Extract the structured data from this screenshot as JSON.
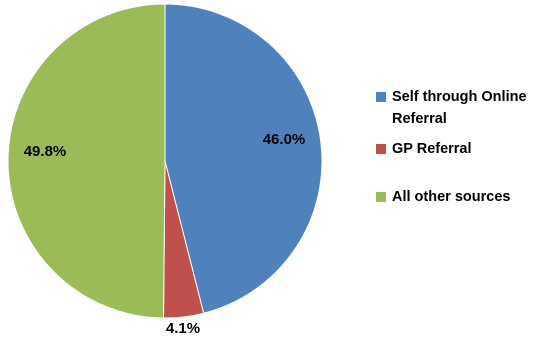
{
  "chart_data": {
    "type": "pie",
    "categories": [
      "Self through Online Referral",
      "GP Referral",
      "All other sources"
    ],
    "values": [
      46.0,
      4.1,
      49.8
    ],
    "labels": [
      "46.0%",
      "4.1%",
      "49.8%"
    ],
    "colors": [
      "#4F81BD",
      "#C0504D",
      "#9BBB59"
    ],
    "start_angle_deg": 0,
    "direction": "clockwise",
    "legend_position": "right"
  },
  "legend": {
    "items": [
      {
        "label": "Self through Online Referral",
        "color": "#4F81BD"
      },
      {
        "label": "GP Referral",
        "color": "#C0504D"
      },
      {
        "label": "All other sources",
        "color": "#9BBB59"
      }
    ]
  }
}
